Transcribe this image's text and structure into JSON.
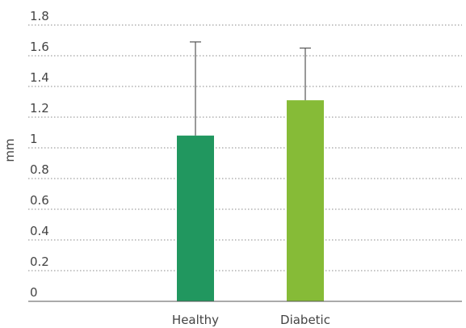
{
  "chart_data": {
    "type": "bar",
    "title": "",
    "xlabel": "",
    "ylabel": "mm",
    "ylim": [
      0,
      1.8
    ],
    "yticks": [
      0,
      0.2,
      0.4,
      0.6,
      0.8,
      1,
      1.2,
      1.4,
      1.6,
      1.8
    ],
    "ytick_labels": [
      "0",
      "0.2",
      "0.4",
      "0.6",
      "0.8",
      "1",
      "1.2",
      "1.4",
      "1.6",
      "1.8"
    ],
    "categories": [
      "Healthy",
      "Diabetic"
    ],
    "values": [
      1.08,
      1.31
    ],
    "error_upper": [
      1.69,
      1.65
    ],
    "colors": [
      "#21975f",
      "#86bb37"
    ],
    "grid": true,
    "legend": "none"
  }
}
